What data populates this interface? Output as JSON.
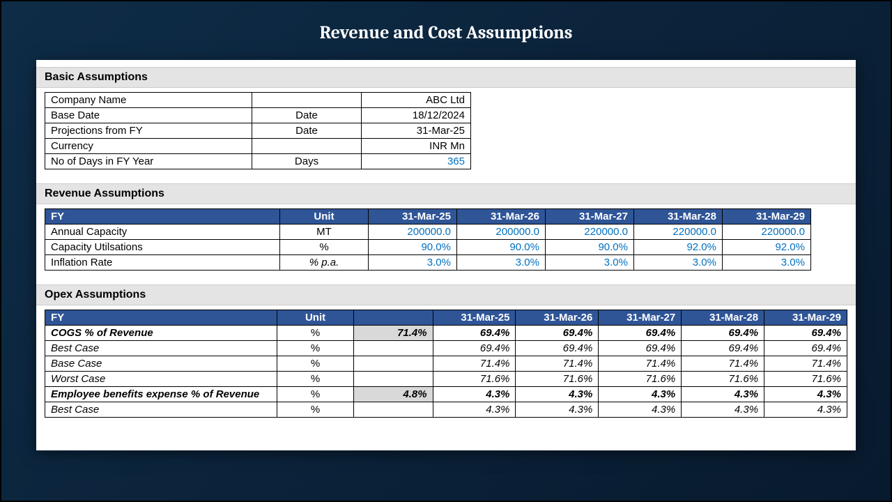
{
  "title": "Revenue and Cost Assumptions",
  "colors": {
    "headerBg": "#2f5597",
    "headerFg": "#ffffff",
    "sectionBg": "#e4e4e4",
    "link": "#0070c0",
    "shade": "#d9d9d9",
    "border": "#000000",
    "panel": "#ffffff"
  },
  "sections": {
    "basic": {
      "title": "Basic Assumptions",
      "rows": [
        {
          "label": "Company Name",
          "unit": "",
          "value": "ABC Ltd",
          "link": false
        },
        {
          "label": "Base Date",
          "unit": "Date",
          "value": "18/12/2024",
          "link": false
        },
        {
          "label": "Projections from FY",
          "unit": "Date",
          "value": "31-Mar-25",
          "link": false
        },
        {
          "label": "Currency",
          "unit": "",
          "value": "INR Mn",
          "link": false
        },
        {
          "label": "No of Days in FY Year",
          "unit": "Days",
          "value": "365",
          "link": true
        }
      ]
    },
    "revenue": {
      "title": "Revenue  Assumptions",
      "header": {
        "fy": "FY",
        "unit": "Unit",
        "years": [
          "31-Mar-25",
          "31-Mar-26",
          "31-Mar-27",
          "31-Mar-28",
          "31-Mar-29"
        ]
      },
      "rows": [
        {
          "label": "Annual Capacity",
          "unit": "MT",
          "vals": [
            "200000.0",
            "200000.0",
            "220000.0",
            "220000.0",
            "220000.0"
          ],
          "link": true,
          "italUnit": false
        },
        {
          "label": "Capacity Utilsations",
          "unit": "%",
          "vals": [
            "90.0%",
            "90.0%",
            "90.0%",
            "92.0%",
            "92.0%"
          ],
          "link": true,
          "italUnit": false
        },
        {
          "label": "Inflation Rate",
          "unit": "% p.a.",
          "vals": [
            "3.0%",
            "3.0%",
            "3.0%",
            "3.0%",
            "3.0%"
          ],
          "link": true,
          "italUnit": true
        }
      ]
    },
    "opex": {
      "title": "Opex Assumptions",
      "header": {
        "fy": "FY",
        "unit": "Unit",
        "blank": "",
        "years": [
          "31-Mar-25",
          "31-Mar-26",
          "31-Mar-27",
          "31-Mar-28",
          "31-Mar-29"
        ]
      },
      "rows": [
        {
          "label": "COGS % of Revenue",
          "unit": "%",
          "base": "71.4%",
          "vals": [
            "69.4%",
            "69.4%",
            "69.4%",
            "69.4%",
            "69.4%"
          ],
          "bold": true,
          "ital": true,
          "shade": true
        },
        {
          "label": "Best Case",
          "unit": "%",
          "base": "",
          "vals": [
            "69.4%",
            "69.4%",
            "69.4%",
            "69.4%",
            "69.4%"
          ],
          "bold": false,
          "ital": true,
          "shade": false
        },
        {
          "label": "Base Case",
          "unit": "%",
          "base": "",
          "vals": [
            "71.4%",
            "71.4%",
            "71.4%",
            "71.4%",
            "71.4%"
          ],
          "bold": false,
          "ital": true,
          "shade": false
        },
        {
          "label": "Worst Case",
          "unit": "%",
          "base": "",
          "vals": [
            "71.6%",
            "71.6%",
            "71.6%",
            "71.6%",
            "71.6%"
          ],
          "bold": false,
          "ital": true,
          "shade": false
        },
        {
          "label": "Employee benefits expense % of Revenue",
          "unit": "%",
          "base": "4.8%",
          "vals": [
            "4.3%",
            "4.3%",
            "4.3%",
            "4.3%",
            "4.3%"
          ],
          "bold": true,
          "ital": true,
          "shade": true
        },
        {
          "label": "Best Case",
          "unit": "%",
          "base": "",
          "vals": [
            "4.3%",
            "4.3%",
            "4.3%",
            "4.3%",
            "4.3%"
          ],
          "bold": false,
          "ital": true,
          "shade": false
        }
      ]
    }
  }
}
